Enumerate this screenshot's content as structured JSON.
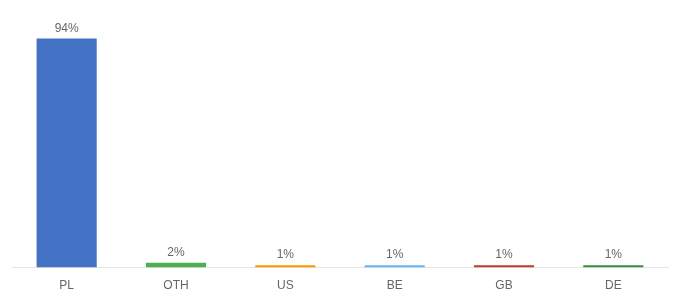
{
  "chart_data": {
    "type": "bar",
    "categories": [
      "PL",
      "OTH",
      "US",
      "BE",
      "GB",
      "DE"
    ],
    "values": [
      94,
      2,
      1,
      1,
      1,
      1
    ],
    "value_labels": [
      "94%",
      "2%",
      "1%",
      "1%",
      "1%",
      "1%"
    ],
    "colors": [
      "#4472c4",
      "#4caf50",
      "#ff9800",
      "#64b5f6",
      "#c0392b",
      "#388e3c"
    ],
    "ylim": [
      0,
      100
    ],
    "data_labels": true,
    "tick_labels": "x",
    "grid": false
  }
}
